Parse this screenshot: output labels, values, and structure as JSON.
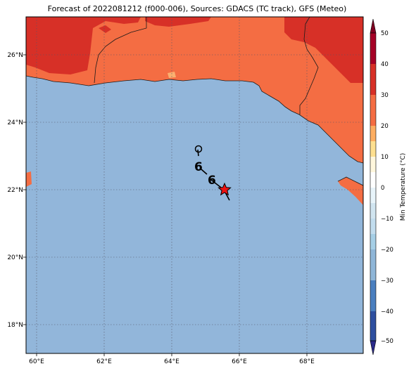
{
  "title": "Forecast of 2022081212 (f000-006), Sources: GDACS (TC track), GFS (Meteo)",
  "lon_ticks": [
    "60°E",
    "62°E",
    "64°E",
    "66°E",
    "68°E"
  ],
  "lat_ticks": [
    "26°N",
    "24°N",
    "22°N",
    "20°N",
    "18°N"
  ],
  "colorbar": {
    "label": "Min Temperature (°C)",
    "ticks": [
      "50",
      "40",
      "30",
      "20",
      "10",
      "0",
      "−10",
      "−20",
      "−30",
      "−40",
      "−50"
    ],
    "colors": [
      "#7f0021",
      "#b2182b",
      "#d6452a",
      "#f4a582",
      "#fddbc7",
      "#ffffff",
      "#d1e5f0",
      "#92c5de",
      "#4393c3",
      "#2d5fa6",
      "#2a2a8a"
    ]
  },
  "colors": {
    "sea": "#92b6da",
    "land_hot": "#f46d43",
    "land_very_hot": "#d73027",
    "land_mild": "#fbb070"
  }
}
